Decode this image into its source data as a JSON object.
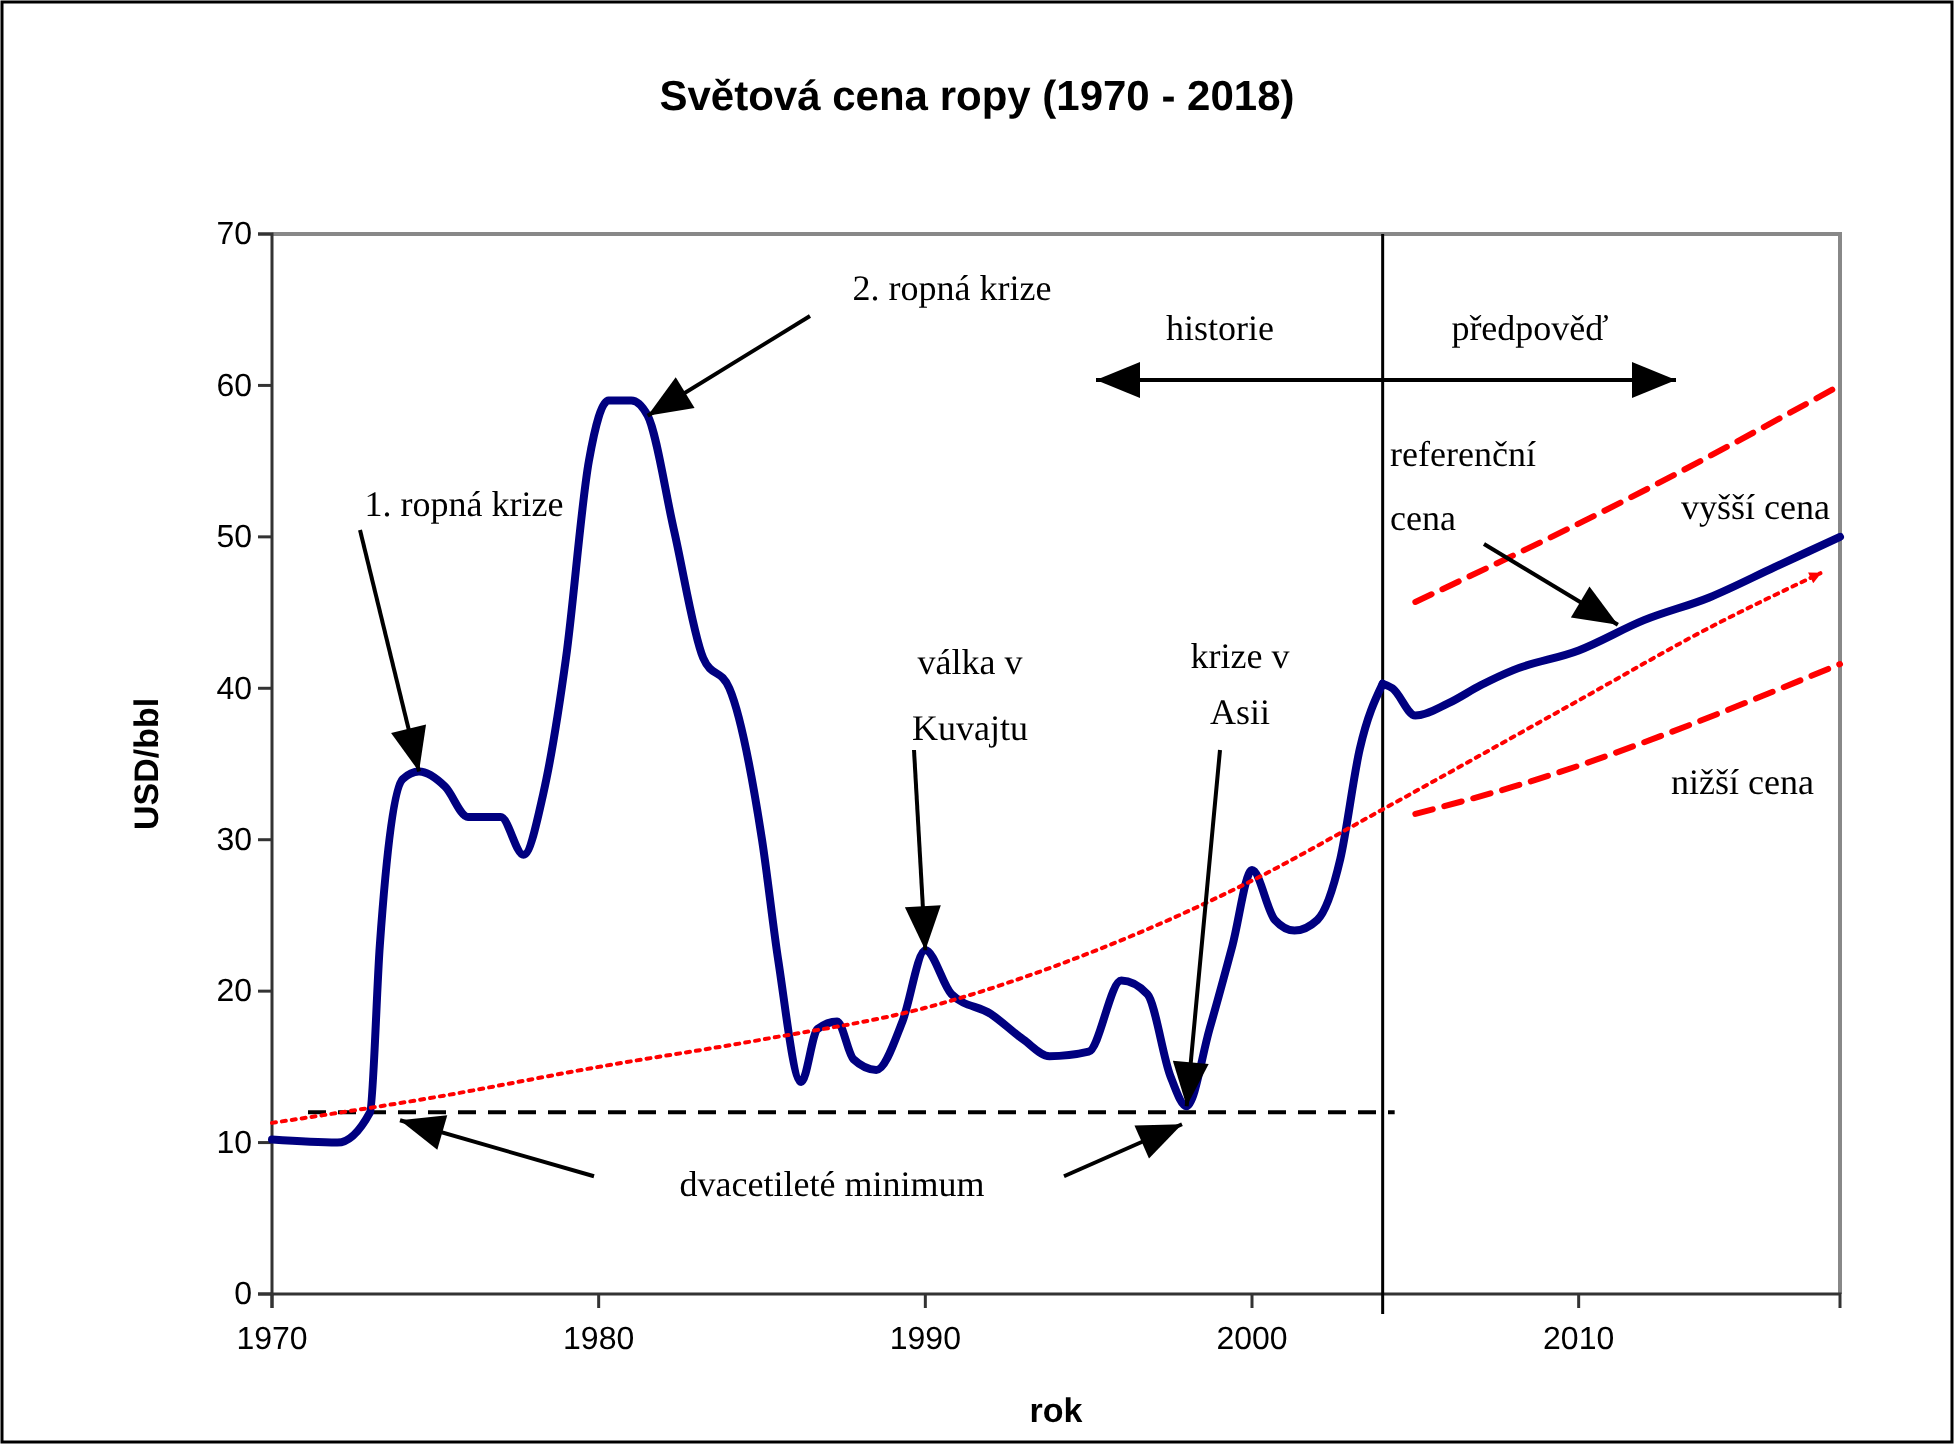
{
  "chart_data": {
    "type": "line",
    "title": "Světová cena ropy (1970 - 2018)",
    "xlabel": "rok",
    "ylabel": "USD/bbl",
    "xlim": [
      1970,
      2018
    ],
    "xticks": [
      1970,
      1980,
      1990,
      2000,
      2010
    ],
    "ylim": [
      0,
      70
    ],
    "yticks": [
      0,
      10,
      20,
      30,
      40,
      50,
      60,
      70
    ],
    "series": [
      {
        "color": "#000080",
        "line_style": "solid",
        "x": [
          1970,
          1972,
          1973,
          1973.3,
          1974,
          1974.5,
          1975.3,
          1976,
          1977,
          1977.7,
          1978.3,
          1979,
          1979.7,
          1980.3,
          1981,
          1981.5,
          1982.3,
          1983.2,
          1984,
          1985,
          1985.5,
          1986.2,
          1986.7,
          1987.3,
          1987.8,
          1988.5,
          1989.3,
          1990,
          1990.8,
          1992,
          1993,
          1993.8,
          1995,
          1996,
          1996.8,
          1997.5,
          1998,
          1998.7,
          1999.4,
          2000,
          2000.7,
          2001.3,
          2002,
          2002.7,
          2003.3,
          2004
        ],
        "values": [
          10.2,
          10,
          12,
          23,
          34,
          34.5,
          33.5,
          31.5,
          31.5,
          29,
          33,
          42,
          55,
          59,
          59,
          58,
          50.5,
          42,
          40,
          30,
          22,
          14,
          17.5,
          18,
          15.5,
          14.8,
          18,
          22.7,
          19.8,
          18.5,
          16.8,
          15.7,
          16,
          20.7,
          19.8,
          14.4,
          12.4,
          17.5,
          23,
          28,
          24.7,
          24,
          24.7,
          28.7,
          36,
          40.3
        ]
      },
      {
        "color": "#000080",
        "line_style": "solid",
        "x": [
          2004,
          2004.3,
          2005,
          2006,
          2007,
          2008,
          2010,
          2012,
          2014,
          2016,
          2018
        ],
        "values": [
          40.3,
          40,
          38.2,
          39,
          40.2,
          41.2,
          42.5,
          44.5,
          46,
          48,
          50
        ]
      },
      {
        "name": "vyšší cena",
        "color": "#ff0000",
        "line_style": "dashed",
        "x": [
          2005,
          2011.5,
          2018
        ],
        "values": [
          45.7,
          52.5,
          60
        ]
      },
      {
        "name": "nižší cena",
        "color": "#ff0000",
        "line_style": "dashed",
        "x": [
          2005,
          2008,
          2018
        ],
        "values": [
          31.7,
          33.5,
          41.6
        ]
      },
      {
        "color": "#ff0000",
        "line_style": "dotted",
        "x": [
          1970,
          1975,
          1980,
          1985,
          1990,
          1995,
          2000,
          2004,
          2010,
          2014,
          2017.4
        ],
        "values": [
          11.3,
          13,
          15,
          16.8,
          18.9,
          22.5,
          27.3,
          32,
          39.2,
          44,
          47.6
        ]
      }
    ],
    "ref_lines": [
      {
        "axis": "x",
        "value": 2004,
        "color": "#000000",
        "line_style": "solid"
      },
      {
        "axis": "y",
        "value": 12,
        "label": "dvacetileté minimum",
        "color": "#000000",
        "line_style": "dashed"
      }
    ],
    "annotations": [
      {
        "text": "1. ropná krize",
        "x": 1974.5,
        "y": 34.5
      },
      {
        "text": "2. ropná krize",
        "x": 1981.5,
        "y": 58
      },
      {
        "text": "válka v Kuvajtu",
        "x": 1990,
        "y": 22.7
      },
      {
        "text": "krize v Asii",
        "x": 1998,
        "y": 12.4
      },
      "historie",
      "předpověď",
      {
        "text": "referenční cena",
        "x": 2011.2,
        "y": 44.2
      }
    ]
  }
}
